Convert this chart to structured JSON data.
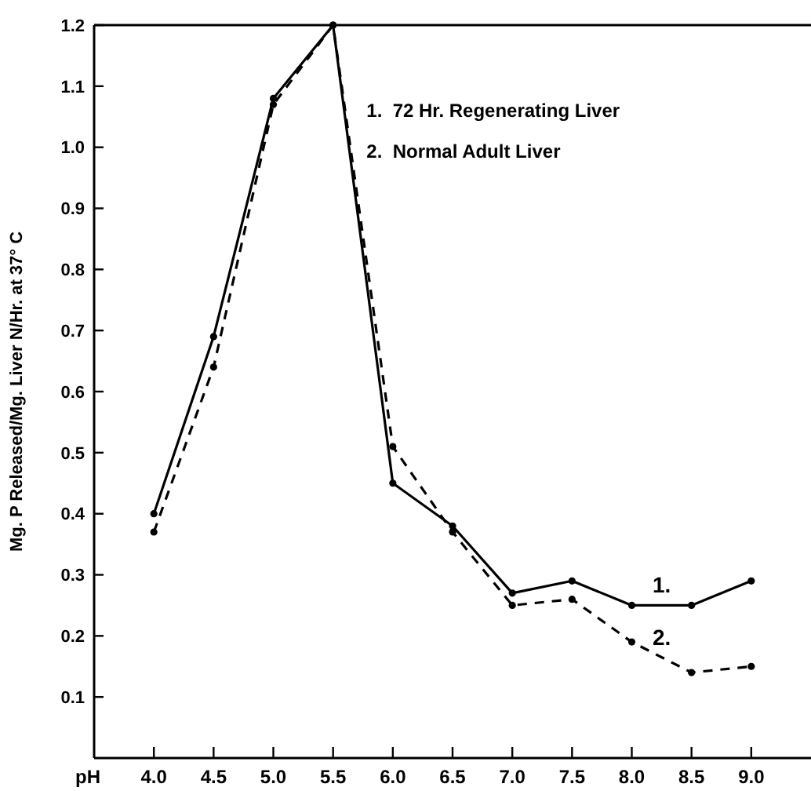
{
  "chart_data": {
    "type": "line",
    "xlabel": "pH",
    "ylabel": "Mg. P Released/Mg. Liver N/Hr. at 37° C",
    "x": [
      4.0,
      4.5,
      5.0,
      5.5,
      6.0,
      6.5,
      7.0,
      7.5,
      8.0,
      8.5,
      9.0
    ],
    "series": [
      {
        "name": "1.",
        "color": "#000000",
        "line_style": "solid",
        "values": [
          0.4,
          0.69,
          1.08,
          1.2,
          0.45,
          0.38,
          0.27,
          0.29,
          0.25,
          0.25,
          0.29
        ]
      },
      {
        "name": "2.",
        "color": "#000000",
        "line_style": "dashed",
        "values": [
          0.37,
          0.64,
          1.07,
          1.2,
          0.51,
          0.37,
          0.25,
          0.26,
          0.19,
          0.14,
          0.15
        ]
      }
    ],
    "xlim": [
      3.5,
      9.5
    ],
    "ylim": [
      0,
      1.2
    ],
    "xticks": [
      {
        "value": 4,
        "label": "4.0"
      },
      4.5,
      {
        "value": 5,
        "label": "5.0"
      },
      5.5,
      {
        "value": 6,
        "label": "6.0"
      },
      6.5,
      {
        "value": 7,
        "label": "7.0"
      },
      7.5,
      {
        "value": 8,
        "label": "8.0"
      },
      8.5,
      {
        "value": 9,
        "label": "9.0"
      }
    ],
    "yticks": [
      0.1,
      0.2,
      0.3,
      0.4,
      0.5,
      0.6,
      0.7,
      0.8,
      0.9,
      {
        "value": 1,
        "label": "1.0"
      },
      1.1,
      1.2
    ],
    "annotations": [
      "1.  72 Hr. Regenerating Liver",
      "2.  Normal Adult Liver"
    ],
    "marker": "circle",
    "grid": false
  }
}
